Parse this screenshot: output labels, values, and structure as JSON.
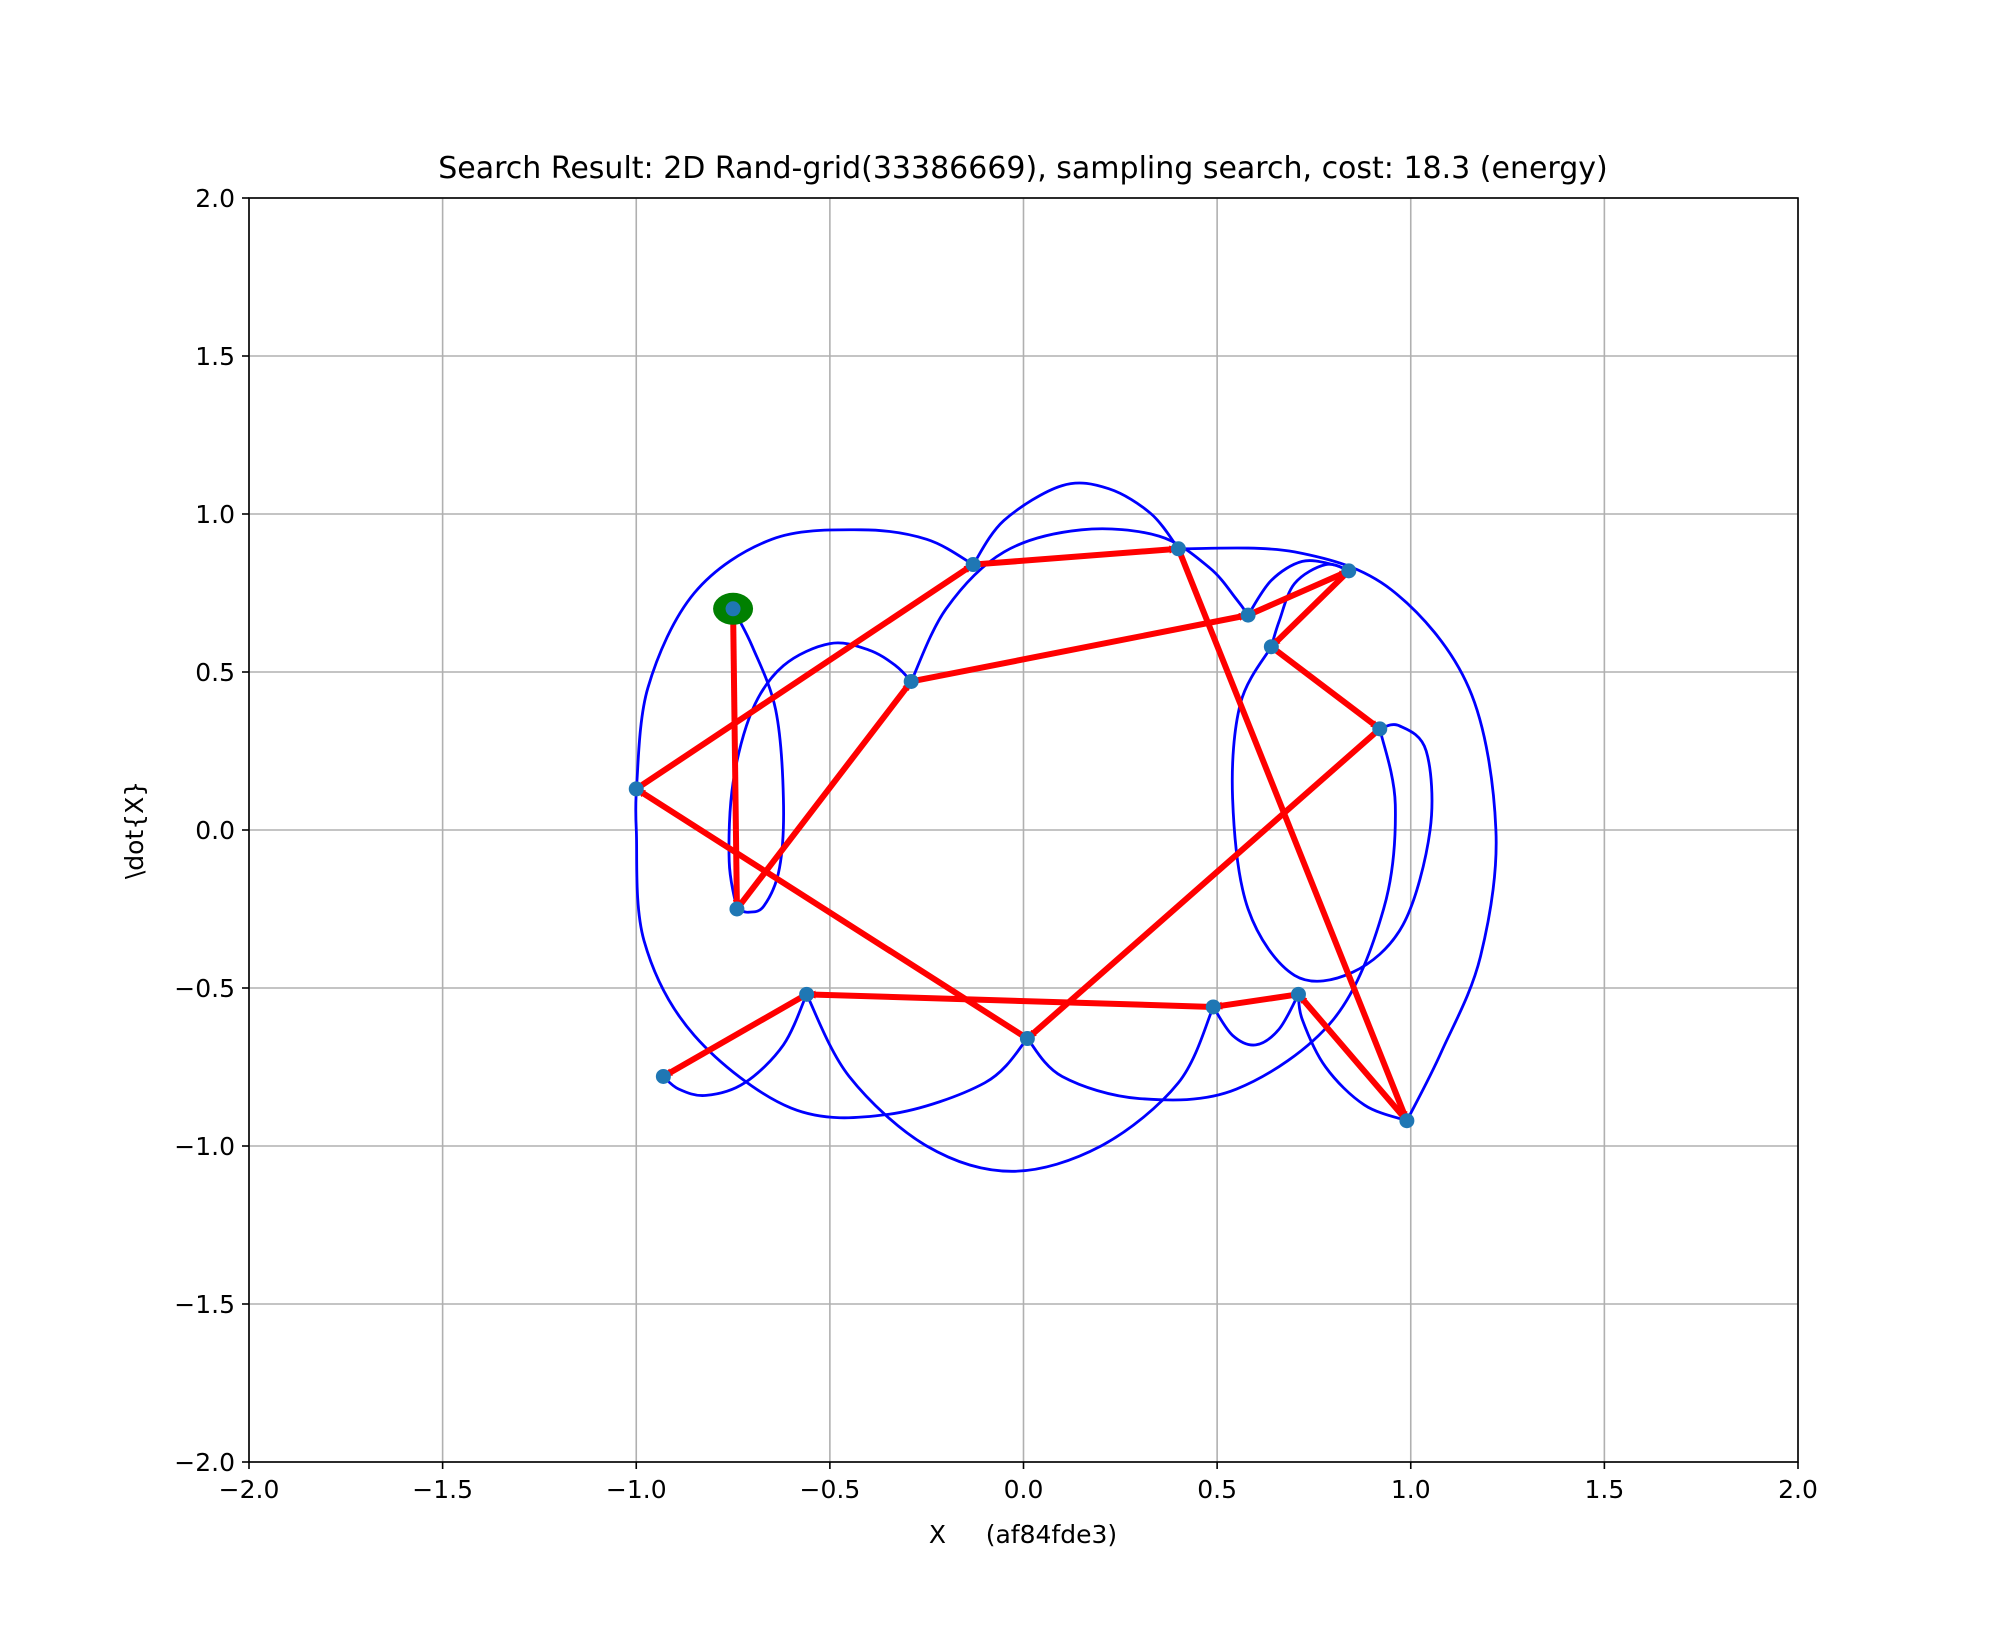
{
  "chart_data": {
    "type": "scatter",
    "title": "Search Result: 2D Rand-grid(33386669), sampling search, cost: 18.3 (energy)",
    "xlabel": "X     (af84fde3)",
    "ylabel": "\\dot{X}",
    "xlim": [
      -2.0,
      2.0
    ],
    "ylim": [
      -2.0,
      2.0
    ],
    "xticks": [
      -2.0,
      -1.5,
      -1.0,
      -0.5,
      0.0,
      0.5,
      1.0,
      1.5,
      2.0
    ],
    "yticks": [
      -2.0,
      -1.5,
      -1.0,
      -0.5,
      0.0,
      0.5,
      1.0,
      1.5,
      2.0
    ],
    "xtick_labels": [
      "−2.0",
      "−1.5",
      "−1.0",
      "−0.5",
      "0.0",
      "0.5",
      "1.0",
      "1.5",
      "2.0"
    ],
    "ytick_labels": [
      "−2.0",
      "−1.5",
      "−1.0",
      "−0.5",
      "0.0",
      "0.5",
      "1.0",
      "1.5",
      "2.0"
    ],
    "grid": true,
    "start_point": {
      "x": -0.75,
      "y": 0.7
    },
    "samples": [
      {
        "x": -0.75,
        "y": 0.7
      },
      {
        "x": -0.74,
        "y": -0.25
      },
      {
        "x": -0.29,
        "y": 0.47
      },
      {
        "x": 0.58,
        "y": 0.68
      },
      {
        "x": 0.84,
        "y": 0.82
      },
      {
        "x": 0.64,
        "y": 0.58
      },
      {
        "x": 0.92,
        "y": 0.32
      },
      {
        "x": 0.01,
        "y": -0.66
      },
      {
        "x": -1.0,
        "y": 0.13
      },
      {
        "x": -0.13,
        "y": 0.84
      },
      {
        "x": 0.4,
        "y": 0.89
      },
      {
        "x": 0.99,
        "y": -0.92
      },
      {
        "x": 0.71,
        "y": -0.52
      },
      {
        "x": 0.49,
        "y": -0.56
      },
      {
        "x": -0.56,
        "y": -0.52
      },
      {
        "x": -0.93,
        "y": -0.78
      }
    ],
    "search_path": [
      {
        "from": [
          -0.75,
          0.7
        ],
        "to": [
          -0.74,
          -0.25
        ]
      },
      {
        "from": [
          -0.74,
          -0.25
        ],
        "to": [
          -0.29,
          0.47
        ]
      },
      {
        "from": [
          -0.29,
          0.47
        ],
        "to": [
          0.58,
          0.68
        ]
      },
      {
        "from": [
          0.58,
          0.68
        ],
        "to": [
          0.84,
          0.82
        ]
      },
      {
        "from": [
          0.84,
          0.82
        ],
        "to": [
          0.64,
          0.58
        ]
      },
      {
        "from": [
          0.64,
          0.58
        ],
        "to": [
          0.92,
          0.32
        ]
      },
      {
        "from": [
          0.92,
          0.32
        ],
        "to": [
          0.01,
          -0.66
        ]
      },
      {
        "from": [
          0.01,
          -0.66
        ],
        "to": [
          -1.0,
          0.13
        ]
      },
      {
        "from": [
          -1.0,
          0.13
        ],
        "to": [
          -0.13,
          0.84
        ]
      },
      {
        "from": [
          -0.13,
          0.84
        ],
        "to": [
          0.4,
          0.89
        ]
      },
      {
        "from": [
          0.4,
          0.89
        ],
        "to": [
          0.99,
          -0.92
        ]
      },
      {
        "from": [
          0.99,
          -0.92
        ],
        "to": [
          0.71,
          -0.52
        ]
      },
      {
        "from": [
          0.71,
          -0.52
        ],
        "to": [
          0.49,
          -0.56
        ]
      },
      {
        "from": [
          0.49,
          -0.56
        ],
        "to": [
          -0.56,
          -0.52
        ]
      },
      {
        "from": [
          -0.56,
          -0.52
        ],
        "to": [
          -0.93,
          -0.78
        ]
      }
    ],
    "trajectories": [
      [
        [
          -0.75,
          0.7
        ],
        [
          -0.7,
          0.58
        ],
        [
          -0.64,
          0.38
        ],
        [
          -0.62,
          0.1
        ],
        [
          -0.63,
          -0.12
        ],
        [
          -0.67,
          -0.24
        ],
        [
          -0.71,
          -0.26
        ],
        [
          -0.74,
          -0.25
        ]
      ],
      [
        [
          -0.74,
          -0.25
        ],
        [
          -0.76,
          -0.1
        ],
        [
          -0.75,
          0.15
        ],
        [
          -0.7,
          0.38
        ],
        [
          -0.62,
          0.52
        ],
        [
          -0.5,
          0.59
        ],
        [
          -0.4,
          0.57
        ],
        [
          -0.33,
          0.52
        ],
        [
          -0.29,
          0.47
        ]
      ],
      [
        [
          -0.29,
          0.47
        ],
        [
          -0.2,
          0.7
        ],
        [
          -0.05,
          0.88
        ],
        [
          0.15,
          0.95
        ],
        [
          0.35,
          0.93
        ],
        [
          0.48,
          0.83
        ],
        [
          0.55,
          0.73
        ],
        [
          0.58,
          0.68
        ]
      ],
      [
        [
          0.58,
          0.68
        ],
        [
          0.64,
          0.79
        ],
        [
          0.72,
          0.85
        ],
        [
          0.8,
          0.84
        ],
        [
          0.84,
          0.82
        ]
      ],
      [
        [
          0.84,
          0.82
        ],
        [
          0.78,
          0.84
        ],
        [
          0.7,
          0.78
        ],
        [
          0.66,
          0.66
        ],
        [
          0.64,
          0.58
        ]
      ],
      [
        [
          0.64,
          0.58
        ],
        [
          0.56,
          0.4
        ],
        [
          0.54,
          0.1
        ],
        [
          0.58,
          -0.25
        ],
        [
          0.7,
          -0.46
        ],
        [
          0.85,
          -0.45
        ],
        [
          0.98,
          -0.3
        ],
        [
          1.05,
          0.0
        ],
        [
          1.04,
          0.25
        ],
        [
          0.97,
          0.33
        ],
        [
          0.92,
          0.32
        ]
      ],
      [
        [
          0.92,
          0.32
        ],
        [
          0.96,
          0.08
        ],
        [
          0.93,
          -0.25
        ],
        [
          0.8,
          -0.6
        ],
        [
          0.55,
          -0.82
        ],
        [
          0.3,
          -0.85
        ],
        [
          0.1,
          -0.78
        ],
        [
          0.01,
          -0.66
        ]
      ],
      [
        [
          0.01,
          -0.66
        ],
        [
          -0.1,
          -0.8
        ],
        [
          -0.35,
          -0.9
        ],
        [
          -0.6,
          -0.88
        ],
        [
          -0.85,
          -0.65
        ],
        [
          -0.98,
          -0.35
        ],
        [
          -1.0,
          0.0
        ],
        [
          -1.0,
          0.13
        ]
      ],
      [
        [
          -1.0,
          0.13
        ],
        [
          -0.97,
          0.45
        ],
        [
          -0.85,
          0.75
        ],
        [
          -0.65,
          0.92
        ],
        [
          -0.42,
          0.95
        ],
        [
          -0.25,
          0.92
        ],
        [
          -0.13,
          0.84
        ]
      ],
      [
        [
          -0.13,
          0.84
        ],
        [
          -0.05,
          0.98
        ],
        [
          0.1,
          1.09
        ],
        [
          0.22,
          1.08
        ],
        [
          0.33,
          1.0
        ],
        [
          0.4,
          0.89
        ]
      ],
      [
        [
          0.4,
          0.89
        ],
        [
          0.7,
          0.88
        ],
        [
          0.95,
          0.76
        ],
        [
          1.15,
          0.45
        ],
        [
          1.22,
          0.0
        ],
        [
          1.18,
          -0.4
        ],
        [
          1.08,
          -0.7
        ],
        [
          0.99,
          -0.92
        ]
      ],
      [
        [
          0.99,
          -0.92
        ],
        [
          0.88,
          -0.87
        ],
        [
          0.78,
          -0.75
        ],
        [
          0.72,
          -0.6
        ],
        [
          0.71,
          -0.52
        ]
      ],
      [
        [
          0.71,
          -0.52
        ],
        [
          0.66,
          -0.63
        ],
        [
          0.6,
          -0.68
        ],
        [
          0.54,
          -0.65
        ],
        [
          0.49,
          -0.56
        ]
      ],
      [
        [
          0.49,
          -0.56
        ],
        [
          0.4,
          -0.8
        ],
        [
          0.2,
          -1.0
        ],
        [
          -0.03,
          -1.08
        ],
        [
          -0.25,
          -1.0
        ],
        [
          -0.45,
          -0.78
        ],
        [
          -0.56,
          -0.52
        ]
      ],
      [
        [
          -0.56,
          -0.52
        ],
        [
          -0.62,
          -0.68
        ],
        [
          -0.72,
          -0.8
        ],
        [
          -0.82,
          -0.84
        ],
        [
          -0.89,
          -0.82
        ],
        [
          -0.93,
          -0.78
        ]
      ]
    ],
    "colors": {
      "path": "#ff0000",
      "trajectory": "#0000ff",
      "sample": "#1f77b4",
      "start": "#008000",
      "grid": "#b0b0b0"
    }
  }
}
